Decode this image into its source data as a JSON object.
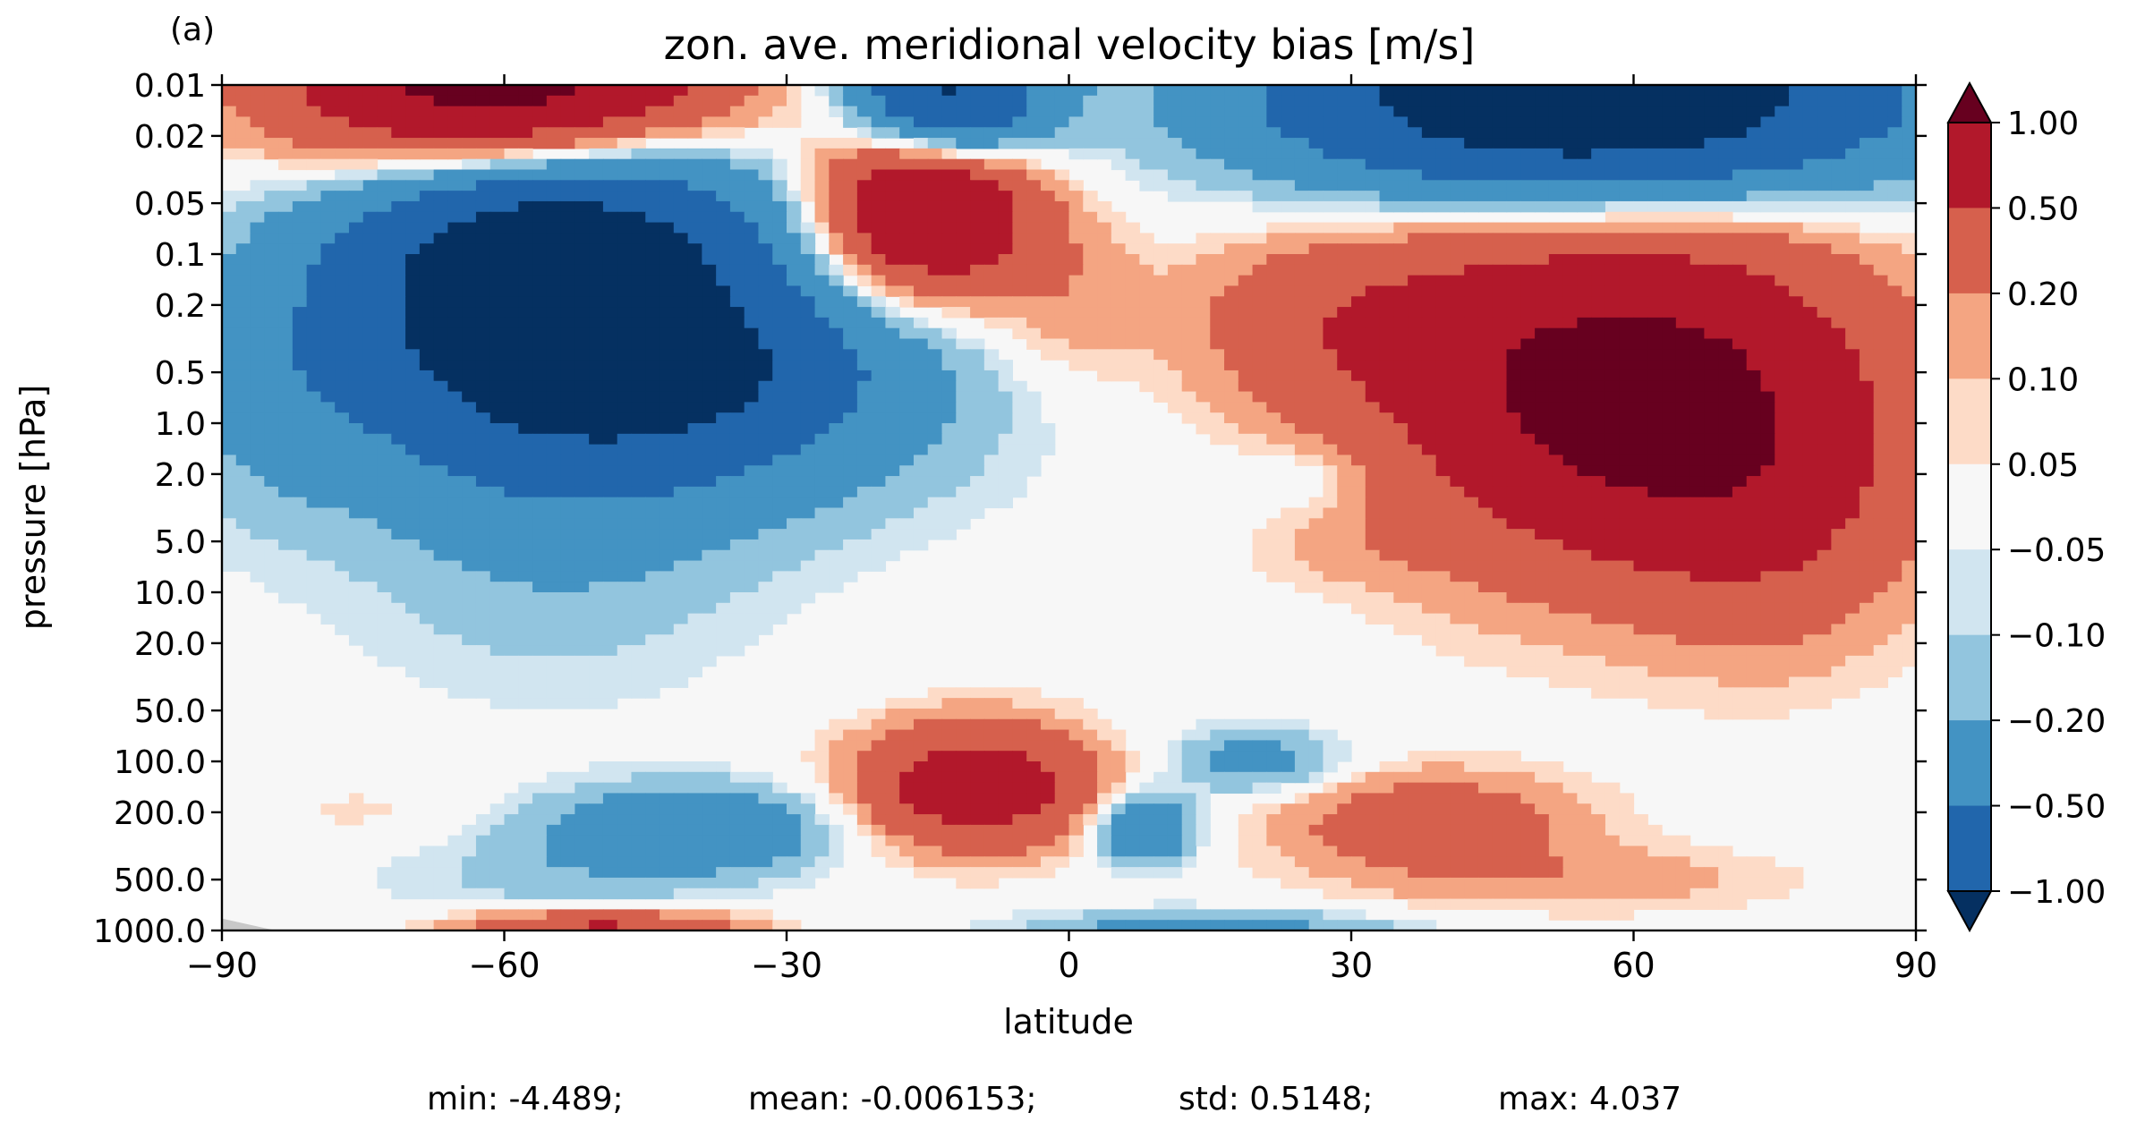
{
  "panel_label": "(a)",
  "stats": {
    "min": "min: -4.489;",
    "mean": "mean: -0.006153;",
    "std": "std: 0.5148;",
    "max": "max: 4.037"
  },
  "colors": {
    "levels": [
      "#053061",
      "#2166ac",
      "#4393c3",
      "#92c5de",
      "#d1e5f0",
      "#f7f7f7",
      "#fddbc7",
      "#f4a582",
      "#d6604d",
      "#b2182b",
      "#67001f"
    ],
    "missing": "#c8c8c8"
  },
  "chart_data": {
    "type": "contourf",
    "title": "zon. ave. meridional velocity bias [m/s]",
    "xlabel": "latitude",
    "ylabel": "pressure [hPa]",
    "x_ticks": [
      -90,
      -60,
      -30,
      0,
      30,
      60,
      90
    ],
    "x_tick_labels": [
      "−90",
      "−60",
      "−30",
      "0",
      "30",
      "60",
      "90"
    ],
    "xlim": [
      -90,
      90
    ],
    "y_ticks": [
      0.01,
      0.02,
      0.05,
      0.1,
      0.2,
      0.5,
      1.0,
      2.0,
      5.0,
      10.0,
      20.0,
      50.0,
      100.0,
      200.0,
      500.0,
      1000.0
    ],
    "y_tick_labels": [
      "0.01",
      "0.02",
      "0.05",
      "0.1",
      "0.2",
      "0.5",
      "1.0",
      "2.0",
      "5.0",
      "10.0",
      "20.0",
      "50.0",
      "100.0",
      "200.0",
      "500.0",
      "1000.0"
    ],
    "ylim": [
      1000.0,
      0.01
    ],
    "y_scale": "log",
    "colorbar": {
      "tick_labels": [
        "1.00",
        "0.50",
        "0.20",
        "0.10",
        "0.05",
        "−0.05",
        "−0.10",
        "−0.20",
        "−0.50",
        "−1.00"
      ],
      "levels": [
        -1.0,
        -0.5,
        -0.2,
        -0.1,
        -0.05,
        0.05,
        0.1,
        0.2,
        0.5,
        1.0
      ],
      "extend": "both"
    },
    "features": [
      {
        "lat": -55,
        "p": 0.12,
        "value": -1.5,
        "wlat": 22,
        "wlog": 0.85
      },
      {
        "lat": -85,
        "p": 0.6,
        "value": -0.18,
        "wlat": 10,
        "wlog": 0.8
      },
      {
        "lat": -45,
        "p": 0.7,
        "value": -0.55,
        "wlat": 30,
        "wlog": 0.7
      },
      {
        "lat": -55,
        "p": 5.0,
        "value": -0.17,
        "wlat": 22,
        "wlog": 0.9
      },
      {
        "lat": -40,
        "p": 0.5,
        "value": -0.3,
        "wlat": 20,
        "wlog": 0.4
      },
      {
        "lat": -60,
        "p": 0.01,
        "value": 1.5,
        "wlat": 22,
        "wlog": 0.55
      },
      {
        "lat": -13,
        "p": 0.012,
        "value": -1.2,
        "wlat": 10,
        "wlog": 0.45
      },
      {
        "lat": 55,
        "p": 0.012,
        "value": -1.6,
        "wlat": 32,
        "wlog": 0.55
      },
      {
        "lat": -15,
        "p": 0.05,
        "value": 1.2,
        "wlat": 11,
        "wlog": 0.5
      },
      {
        "lat": 0,
        "p": 0.2,
        "value": 0.15,
        "wlat": 8,
        "wlog": 0.5
      },
      {
        "lat": 60,
        "p": 0.7,
        "value": 1.25,
        "wlat": 24,
        "wlog": 0.95
      },
      {
        "lat": 30,
        "p": 0.25,
        "value": 0.35,
        "wlat": 18,
        "wlog": 0.55
      },
      {
        "lat": 75,
        "p": 3.5,
        "value": 0.3,
        "wlat": 14,
        "wlog": 0.8
      },
      {
        "lat": 25,
        "p": 2.0,
        "value": -0.12,
        "wlat": 8,
        "wlog": 0.2
      },
      {
        "lat": 30,
        "p": 6.0,
        "value": 0.07,
        "wlat": 10,
        "wlog": 0.2
      },
      {
        "lat": -40,
        "p": 250.0,
        "value": -0.45,
        "wlat": 15,
        "wlog": 0.25
      },
      {
        "lat": -55,
        "p": 500.0,
        "value": -0.12,
        "wlat": 20,
        "wlog": 0.3
      },
      {
        "lat": -10,
        "p": 140.0,
        "value": 0.8,
        "wlat": 12,
        "wlog": 0.35
      },
      {
        "lat": 8,
        "p": 250.0,
        "value": -0.55,
        "wlat": 5,
        "wlog": 0.2
      },
      {
        "lat": 20,
        "p": 100.0,
        "value": -0.3,
        "wlat": 9,
        "wlog": 0.2
      },
      {
        "lat": 38,
        "p": 230.0,
        "value": 0.35,
        "wlat": 16,
        "wlog": 0.3
      },
      {
        "lat": 55,
        "p": 500.0,
        "value": 0.15,
        "wlat": 22,
        "wlog": 0.2
      },
      {
        "lat": -75,
        "p": 200.0,
        "value": 0.07,
        "wlat": 10,
        "wlog": 0.2
      },
      {
        "lat": -50,
        "p": 1000.0,
        "value": 0.6,
        "wlat": 15,
        "wlog": 0.12
      },
      {
        "lat": 15,
        "p": 1000.0,
        "value": -0.3,
        "wlat": 20,
        "wlog": 0.12
      }
    ]
  }
}
